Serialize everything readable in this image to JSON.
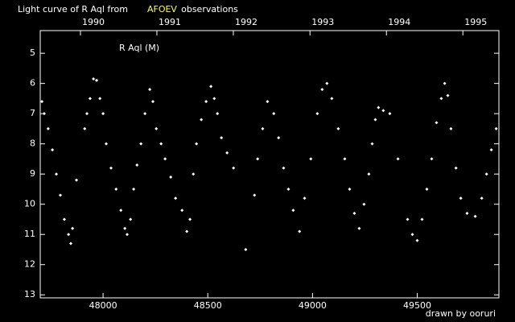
{
  "chart_data": {
    "type": "scatter",
    "title": "Light curve of R Aql from",
    "title_source": "AFOEV",
    "title_end": "observations",
    "title_source_color": "#ffff40",
    "annotation": "R Aql (M)",
    "credit": "drawn by ooruri",
    "credit_color": "#40e0ff",
    "color": "#ffffff",
    "background": "#000000",
    "invert_y": true,
    "xlim": [
      47700,
      49890
    ],
    "ylim": [
      4.25,
      13.1
    ],
    "xticks": [
      48000,
      48500,
      49000,
      49500
    ],
    "yticks": [
      5,
      6,
      7,
      8,
      9,
      10,
      11,
      12,
      13
    ],
    "x2ticks": [
      {
        "value": 47892,
        "label": "1990"
      },
      {
        "value": 48257,
        "label": "1991"
      },
      {
        "value": 48622,
        "label": "1992"
      },
      {
        "value": 48988,
        "label": "1993"
      },
      {
        "value": 49353,
        "label": "1994"
      },
      {
        "value": 49718,
        "label": "1995"
      }
    ],
    "x": [
      47708,
      47719,
      47738,
      47758,
      47777,
      47796,
      47815,
      47835,
      47846,
      47854,
      47873,
      47912,
      47923,
      47938,
      47954,
      47969,
      47985,
      48000,
      48015,
      48038,
      48062,
      48085,
      48104,
      48115,
      48131,
      48146,
      48162,
      48181,
      48200,
      48223,
      48238,
      48254,
      48277,
      48296,
      48323,
      48346,
      48377,
      48400,
      48415,
      48431,
      48446,
      48469,
      48492,
      48515,
      48531,
      48546,
      48565,
      48592,
      48623,
      48681,
      48723,
      48738,
      48762,
      48785,
      48815,
      48838,
      48862,
      48885,
      48908,
      48938,
      48962,
      48992,
      49023,
      49046,
      49069,
      49092,
      49123,
      49154,
      49177,
      49200,
      49223,
      49246,
      49269,
      49285,
      49300,
      49315,
      49338,
      49369,
      49408,
      49454,
      49477,
      49500,
      49523,
      49546,
      49569,
      49592,
      49615,
      49631,
      49646,
      49661,
      49685,
      49708,
      49738,
      49777,
      49808,
      49831,
      49854,
      49877
    ],
    "values": [
      6.6,
      7.0,
      7.5,
      8.2,
      9.0,
      9.7,
      10.5,
      11.0,
      11.3,
      10.8,
      9.2,
      7.5,
      7.0,
      6.5,
      5.85,
      5.9,
      6.5,
      7.0,
      8.0,
      8.8,
      9.5,
      10.2,
      10.8,
      11.0,
      10.5,
      9.5,
      8.7,
      8.0,
      7.0,
      6.2,
      6.6,
      7.5,
      8.0,
      8.5,
      9.1,
      9.8,
      10.2,
      10.9,
      10.5,
      9.0,
      8.0,
      7.2,
      6.6,
      6.1,
      6.5,
      7.0,
      7.8,
      8.3,
      8.8,
      11.5,
      9.7,
      8.5,
      7.5,
      6.6,
      7.0,
      7.8,
      8.8,
      9.5,
      10.2,
      10.9,
      9.8,
      8.5,
      7.0,
      6.2,
      6.0,
      6.5,
      7.5,
      8.5,
      9.5,
      10.3,
      10.8,
      10.0,
      9.0,
      8.0,
      7.2,
      6.8,
      6.9,
      7.0,
      8.5,
      10.5,
      11.0,
      11.2,
      10.5,
      9.5,
      8.5,
      7.3,
      6.5,
      6.0,
      6.4,
      7.5,
      8.8,
      9.8,
      10.3,
      10.4,
      9.8,
      9.0,
      8.2,
      7.5
    ]
  }
}
